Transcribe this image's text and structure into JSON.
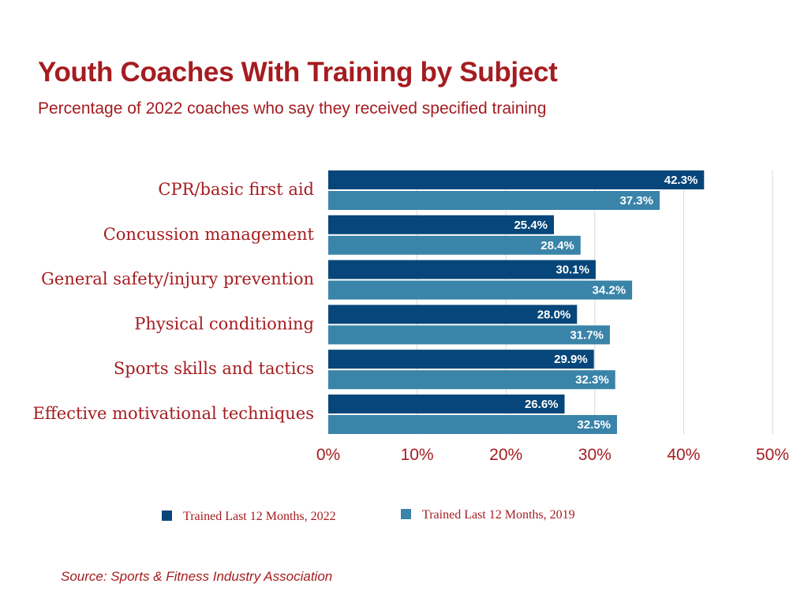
{
  "header": {
    "title": "Youth Coaches With Training by Subject",
    "subtitle": "Percentage of 2022 coaches who say they received specified training"
  },
  "source": "Source: Sports & Fitness Industry Association",
  "chart_data": {
    "type": "bar",
    "orientation": "horizontal",
    "categories": [
      "CPR/basic first aid",
      "Concussion management",
      "General safety/injury prevention",
      "Physical conditioning",
      "Sports skills and tactics",
      "Effective motivational techniques"
    ],
    "series": [
      {
        "name": "Trained Last 12 Months, 2022",
        "color": "#06467a",
        "values": [
          42.3,
          25.4,
          30.1,
          28.0,
          29.9,
          26.6
        ],
        "labels": [
          "42.3%",
          "25.4%",
          "30.1%",
          "28.0%",
          "29.9%",
          "26.6%"
        ]
      },
      {
        "name": "Trained Last 12 Months, 2019",
        "color": "#3a84a9",
        "values": [
          37.3,
          28.4,
          34.2,
          31.7,
          32.3,
          32.5
        ],
        "labels": [
          "37.3%",
          "28.4%",
          "34.2%",
          "31.7%",
          "32.3%",
          "32.5%"
        ]
      }
    ],
    "xlim": [
      0,
      50
    ],
    "ticks": [
      0,
      10,
      20,
      30,
      40,
      50
    ],
    "tick_labels": [
      "0%",
      "10%",
      "20%",
      "30%",
      "40%",
      "50%"
    ],
    "grid": true,
    "legend_position": "bottom"
  }
}
